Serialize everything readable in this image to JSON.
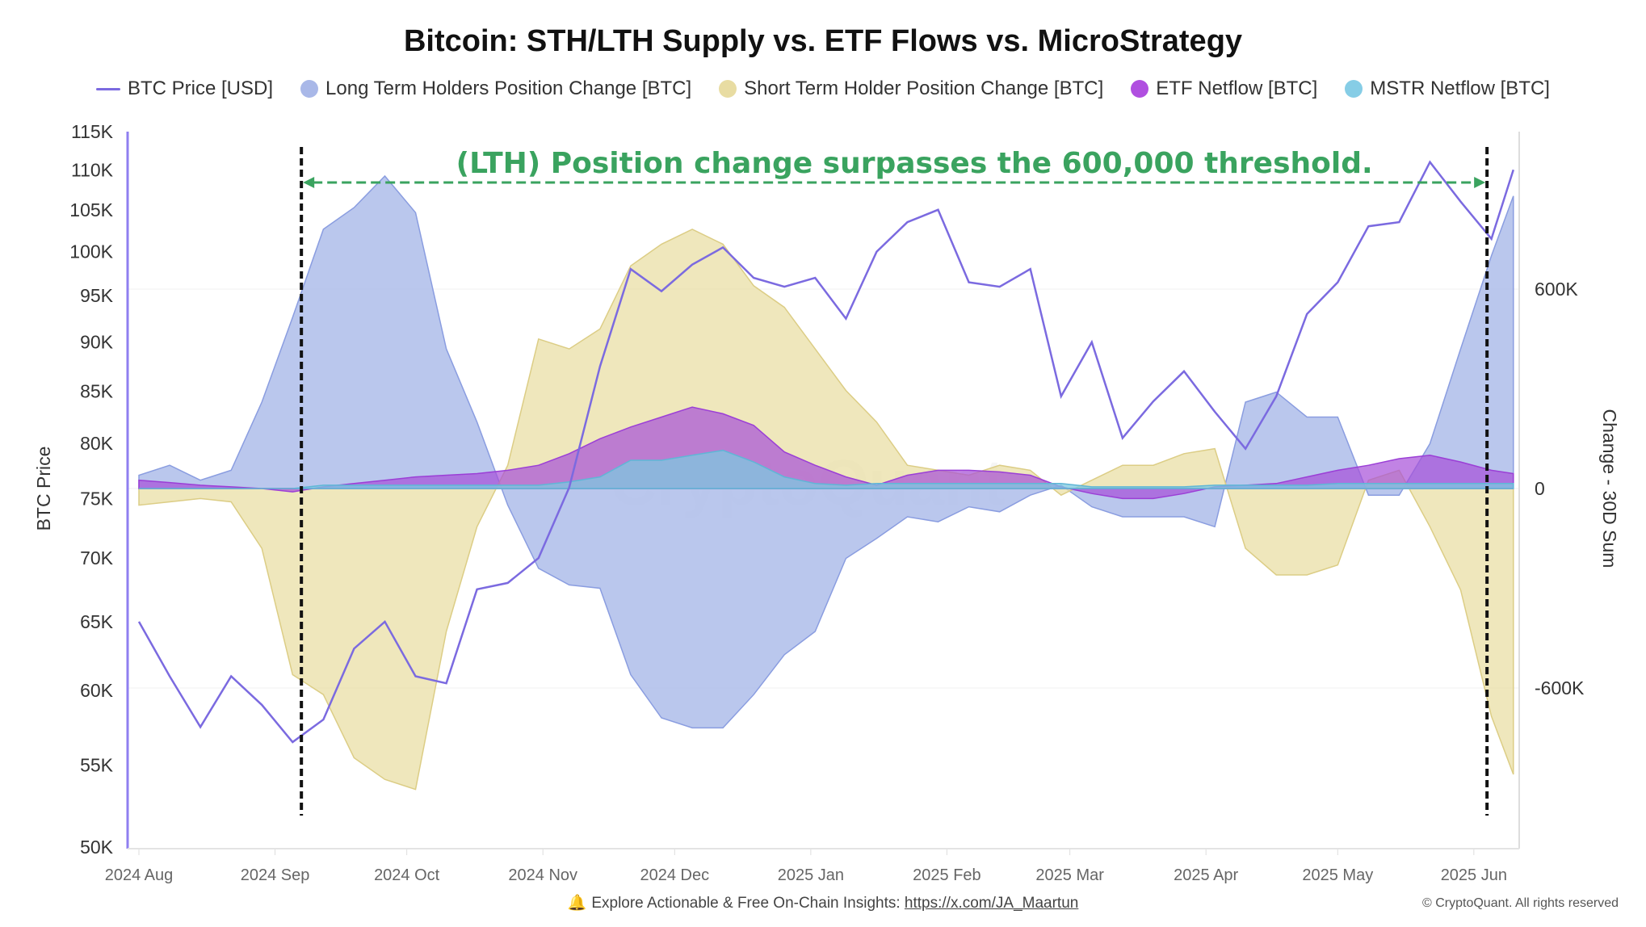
{
  "chart_data": {
    "type": "area",
    "title": "Bitcoin: STH/LTH Supply vs. ETF Flows vs. MicroStrategy",
    "ylabel_left": "BTC Price",
    "ylabel_right": "Change - 30D Sum",
    "y_left_scale": "log",
    "y_left_range": [
      50000,
      115000
    ],
    "y_left_ticks": [
      "115K",
      "110K",
      "105K",
      "100K",
      "95K",
      "90K",
      "85K",
      "80K",
      "75K",
      "70K",
      "65K",
      "60K",
      "55K",
      "50K"
    ],
    "y_left_tick_values": [
      115000,
      110000,
      105000,
      100000,
      95000,
      90000,
      85000,
      80000,
      75000,
      70000,
      65000,
      60000,
      55000,
      50000
    ],
    "y_right_ticks": [
      "600K",
      "0",
      "-600K"
    ],
    "y_right_tick_values": [
      600000,
      0,
      -600000
    ],
    "y_right_range": [
      -1080000,
      1067000
    ],
    "x_ticks": [
      "2024 Aug",
      "2024 Sep",
      "2024 Oct",
      "2024 Nov",
      "2024 Dec",
      "2025 Jan",
      "2025 Feb",
      "2025 Mar",
      "2025 Apr",
      "2025 May",
      "2025 Jun"
    ],
    "x_tick_dates": [
      "2024-08-01",
      "2024-09-01",
      "2024-10-01",
      "2024-11-01",
      "2024-12-01",
      "2025-01-01",
      "2025-02-01",
      "2025-03-01",
      "2025-04-01",
      "2025-05-01",
      "2025-06-01"
    ],
    "grid": true,
    "legend_position": "top",
    "x": [
      "2024-08-01",
      "2024-08-08",
      "2024-08-15",
      "2024-08-22",
      "2024-08-29",
      "2024-09-05",
      "2024-09-12",
      "2024-09-19",
      "2024-09-26",
      "2024-10-03",
      "2024-10-10",
      "2024-10-17",
      "2024-10-24",
      "2024-10-31",
      "2024-11-07",
      "2024-11-14",
      "2024-11-21",
      "2024-11-28",
      "2024-12-05",
      "2024-12-12",
      "2024-12-19",
      "2024-12-26",
      "2025-01-02",
      "2025-01-09",
      "2025-01-16",
      "2025-01-23",
      "2025-01-30",
      "2025-02-06",
      "2025-02-13",
      "2025-02-20",
      "2025-02-27",
      "2025-03-06",
      "2025-03-13",
      "2025-03-20",
      "2025-03-27",
      "2025-04-03",
      "2025-04-10",
      "2025-04-17",
      "2025-04-24",
      "2025-05-01",
      "2025-05-08",
      "2025-05-15",
      "2025-05-22",
      "2025-05-29",
      "2025-06-05",
      "2025-06-10"
    ],
    "series": [
      {
        "name": "BTC Price [USD]",
        "axis": "left",
        "kind": "line",
        "color": "#7b6ae0",
        "values": [
          65000,
          61000,
          57500,
          61000,
          59000,
          56500,
          58000,
          63000,
          65000,
          61000,
          60500,
          67500,
          68000,
          70000,
          76000,
          87500,
          98000,
          95500,
          98500,
          100500,
          97000,
          96000,
          97000,
          92500,
          100000,
          103500,
          105000,
          96500,
          96000,
          98000,
          84500,
          90000,
          80500,
          84000,
          87000,
          83000,
          79500,
          84500,
          93000,
          96500,
          103000,
          103500,
          111000,
          106000,
          101500,
          110000
        ]
      },
      {
        "name": "Long Term Holders Position Change [BTC]",
        "axis": "right",
        "kind": "area",
        "color": "#aebdea",
        "values": [
          40000,
          70000,
          25000,
          55000,
          260000,
          515000,
          780000,
          845000,
          940000,
          830000,
          420000,
          200000,
          -50000,
          -240000,
          -290000,
          -300000,
          -560000,
          -690000,
          -720000,
          -720000,
          -620000,
          -500000,
          -430000,
          -210000,
          -150000,
          -85000,
          -100000,
          -55000,
          -70000,
          -20000,
          10000,
          -55000,
          -85000,
          -85000,
          -85000,
          -115000,
          260000,
          290000,
          215000,
          215000,
          -20000,
          -20000,
          135000,
          420000,
          700000,
          880000
        ]
      },
      {
        "name": "Short Term Holder Position Change [BTC]",
        "axis": "right",
        "kind": "area",
        "color": "#eadfa6",
        "values": [
          -50000,
          -40000,
          -30000,
          -40000,
          -180000,
          -560000,
          -620000,
          -810000,
          -875000,
          -905000,
          -430000,
          -115000,
          70000,
          450000,
          420000,
          480000,
          670000,
          735000,
          780000,
          735000,
          610000,
          545000,
          420000,
          295000,
          200000,
          70000,
          55000,
          40000,
          70000,
          55000,
          -20000,
          25000,
          70000,
          70000,
          105000,
          120000,
          -180000,
          -260000,
          -260000,
          -230000,
          25000,
          55000,
          -115000,
          -305000,
          -685000,
          -860000
        ]
      },
      {
        "name": "ETF Netflow [BTC]",
        "axis": "right",
        "kind": "area",
        "color": "#a64fd9",
        "values": [
          25000,
          18000,
          10000,
          5000,
          0,
          -10000,
          5000,
          15000,
          25000,
          35000,
          40000,
          45000,
          55000,
          70000,
          105000,
          150000,
          185000,
          215000,
          245000,
          225000,
          190000,
          110000,
          70000,
          35000,
          10000,
          40000,
          55000,
          55000,
          50000,
          40000,
          5000,
          -15000,
          -30000,
          -30000,
          -15000,
          5000,
          10000,
          15000,
          35000,
          55000,
          70000,
          90000,
          100000,
          80000,
          55000,
          45000
        ]
      },
      {
        "name": "MSTR Netflow [BTC]",
        "axis": "right",
        "kind": "area",
        "color": "#7ec8e0",
        "values": [
          0,
          0,
          0,
          0,
          0,
          0,
          10000,
          10000,
          10000,
          10000,
          10000,
          10000,
          10000,
          10000,
          20000,
          35000,
          85000,
          85000,
          100000,
          115000,
          80000,
          35000,
          15000,
          10000,
          15000,
          15000,
          15000,
          15000,
          15000,
          15000,
          15000,
          5000,
          5000,
          5000,
          5000,
          10000,
          10000,
          10000,
          10000,
          15000,
          15000,
          15000,
          15000,
          15000,
          15000,
          15000
        ]
      }
    ],
    "annotations": {
      "text": "(LTH) Position change surpasses the 600,000 threshold.",
      "text_color": "#3aa35f",
      "range_start": "2024-09-07",
      "range_end": "2025-06-04"
    },
    "watermark": "CryptoQuant"
  },
  "legend": [
    {
      "label": "BTC Price [USD]",
      "color": "#7b6ae0",
      "shape": "line"
    },
    {
      "label": "Long Term Holders Position Change [BTC]",
      "color": "#a9b8e8",
      "shape": "dot"
    },
    {
      "label": "Short Term Holder Position Change [BTC]",
      "color": "#e8dca2",
      "shape": "dot"
    },
    {
      "label": "ETF Netflow [BTC]",
      "color": "#b04fe0",
      "shape": "dot"
    },
    {
      "label": "MSTR Netflow [BTC]",
      "color": "#86cde6",
      "shape": "dot"
    }
  ],
  "footer": {
    "icon": "bell-icon",
    "text": "Explore Actionable & Free On-Chain Insights: ",
    "link": "https://x.com/JA_Maartun",
    "copyright": "© CryptoQuant. All rights reserved"
  }
}
